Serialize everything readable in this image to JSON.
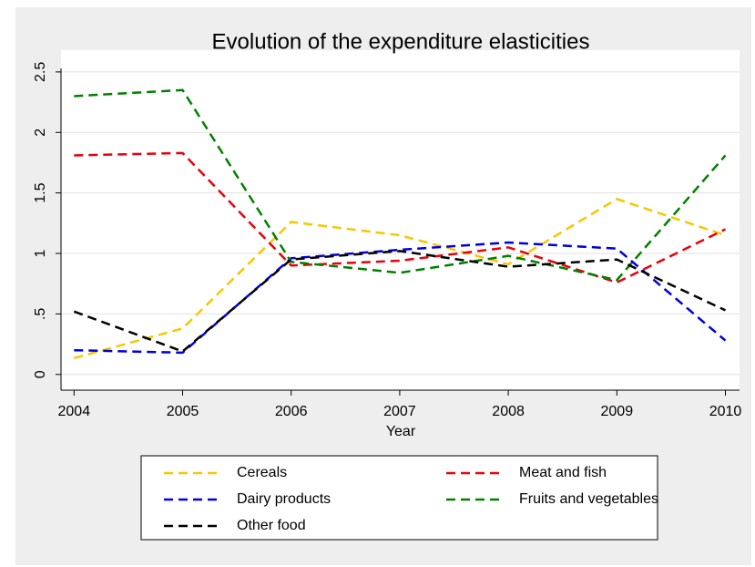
{
  "chart_data": {
    "type": "line",
    "title": "Evolution of the expenditure elasticities",
    "x_label": "Year",
    "x": [
      2004,
      2005,
      2006,
      2007,
      2008,
      2009,
      2010
    ],
    "series": [
      {
        "name": "Cereals",
        "color": "#f5c800",
        "values": [
          0.135,
          0.38,
          1.26,
          1.15,
          0.91,
          1.45,
          1.15
        ]
      },
      {
        "name": "Meat and fish",
        "color": "#e8000b",
        "values": [
          1.81,
          1.83,
          0.9,
          0.94,
          1.05,
          0.76,
          1.2
        ]
      },
      {
        "name": "Dairy products",
        "color": "#0000e0",
        "values": [
          0.2,
          0.18,
          0.96,
          1.03,
          1.09,
          1.04,
          0.28
        ]
      },
      {
        "name": "Fruits and vegetables",
        "color": "#008000",
        "values": [
          2.3,
          2.35,
          0.93,
          0.84,
          0.98,
          0.78,
          1.81
        ]
      },
      {
        "name": "Other food",
        "color": "#000000",
        "values": [
          0.52,
          0.19,
          0.95,
          1.02,
          0.89,
          0.95,
          0.53
        ]
      }
    ],
    "xlim": [
      2003.88,
      2010.13
    ],
    "xticks": [
      2004,
      2005,
      2006,
      2007,
      2008,
      2009,
      2010
    ],
    "ylim": [
      -0.13,
      2.68
    ],
    "yticks": [
      0,
      {
        "value": 0.5,
        "label": ".5"
      },
      1,
      1.5,
      2,
      2.5
    ],
    "grid": true
  }
}
